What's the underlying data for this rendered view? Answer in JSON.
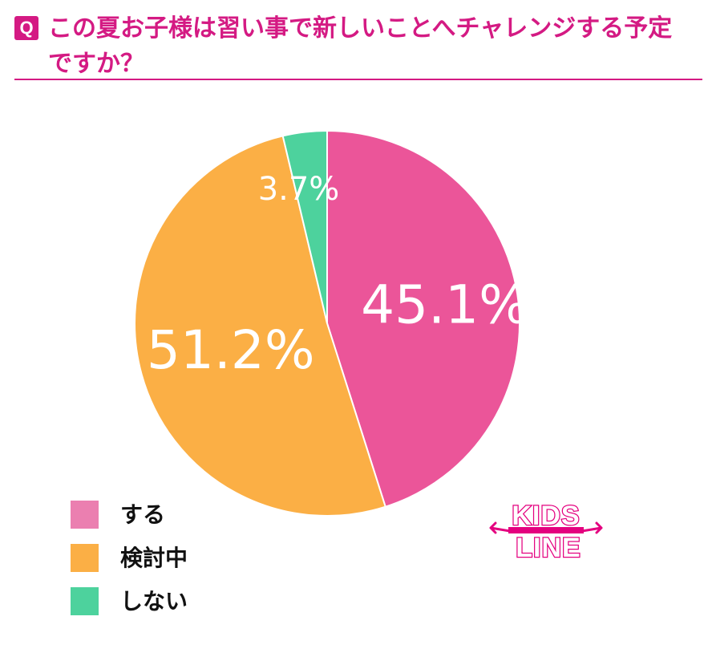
{
  "question": {
    "badge": "Q",
    "title": "この夏お子様は習い事で新しいことへチャレンジする予定ですか？"
  },
  "chart_data": {
    "type": "pie",
    "slices": [
      {
        "label": "する",
        "value": 45.1,
        "value_label": "45.1%",
        "color": "#eb5599"
      },
      {
        "label": "検討中",
        "value": 51.2,
        "value_label": "51.2%",
        "color": "#fbaf45"
      },
      {
        "label": "しない",
        "value": 3.7,
        "value_label": "3.7%",
        "color": "#4dd29d"
      }
    ],
    "start_angle": "12 o'clock",
    "direction": "clockwise",
    "legend_placement": "bottom-left"
  },
  "legend": {
    "items": [
      {
        "label": "する",
        "color": "#eb7fb0"
      },
      {
        "label": "検討中",
        "color": "#fbaf45"
      },
      {
        "label": "しない",
        "color": "#4dd29d"
      }
    ]
  },
  "logo": {
    "text_top": "KIDS",
    "text_bottom": "LINE",
    "color": "#e4007f"
  },
  "colors": {
    "accent": "#d41a83"
  }
}
